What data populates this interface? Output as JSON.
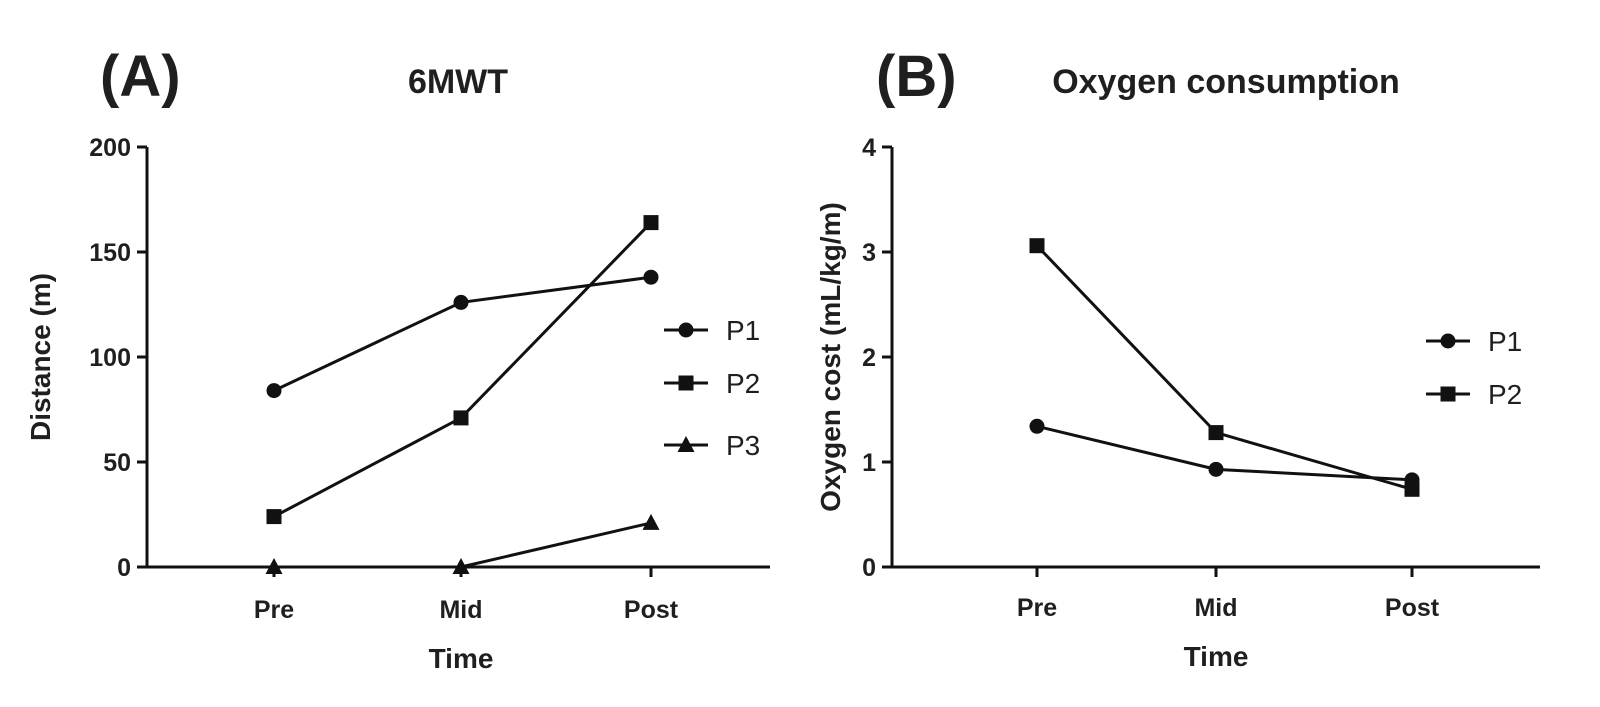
{
  "chart_data": [
    {
      "panel": "(A)",
      "type": "line",
      "title": "6MWT",
      "xlabel": "Time",
      "ylabel": "Distance  (m)",
      "categories": [
        "Pre",
        "Mid",
        "Post"
      ],
      "ylim": [
        0,
        200
      ],
      "yticks": [
        0,
        50,
        100,
        150,
        200
      ],
      "legend_position": "right",
      "series": [
        {
          "name": "P1",
          "marker": "circle",
          "values": [
            84,
            126,
            138
          ]
        },
        {
          "name": "P2",
          "marker": "square",
          "values": [
            24,
            71,
            164
          ]
        },
        {
          "name": "P3",
          "marker": "triangle",
          "values": [
            0,
            0,
            21
          ]
        }
      ]
    },
    {
      "panel": "(B)",
      "type": "line",
      "title": "Oxygen consumption",
      "xlabel": "Time",
      "ylabel": "Oxygen cost (mL/kg/m)",
      "categories": [
        "Pre",
        "Mid",
        "Post"
      ],
      "ylim": [
        0,
        4
      ],
      "yticks": [
        0,
        1,
        2,
        3,
        4
      ],
      "legend_position": "right",
      "series": [
        {
          "name": "P1",
          "marker": "circle",
          "values": [
            1.34,
            0.93,
            0.83
          ]
        },
        {
          "name": "P2",
          "marker": "square",
          "values": [
            3.06,
            1.28,
            0.74
          ]
        }
      ]
    }
  ]
}
